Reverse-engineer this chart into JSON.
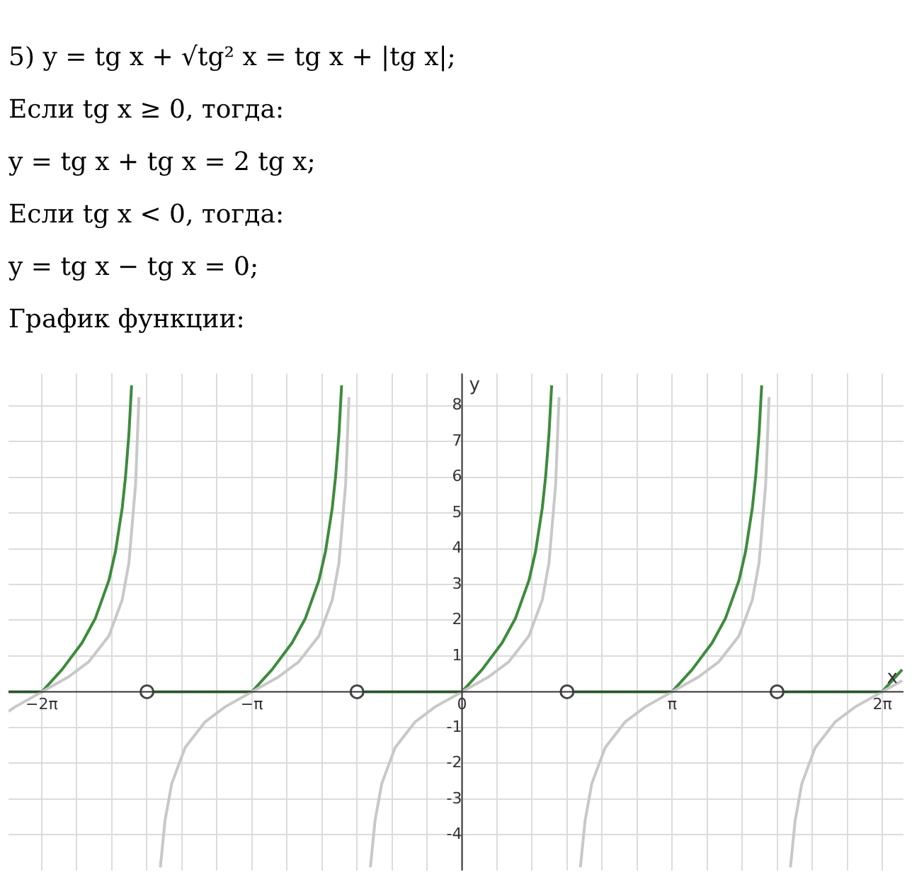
{
  "chart_data": {
    "type": "line",
    "annotations": [
      "5) y = tg x + √tg² x = tg x + |tg x|;",
      "Если tg x ≥ 0, тогда:",
      "y = tg x + tg x = 2 tg x;",
      "Если tg x < 0, тогда:",
      "y = tg x − tg x = 0;",
      "График функции:"
    ],
    "xlabel": "x",
    "ylabel": "y",
    "xlim": [
      -6.78,
      6.6
    ],
    "ylim": [
      -5,
      8.9
    ],
    "xticks": [
      {
        "value": -6.2832,
        "label": "−2π"
      },
      {
        "value": -5.7596,
        "label": null
      },
      {
        "value": -5.236,
        "label": null
      },
      {
        "value": -4.7124,
        "label": null
      },
      {
        "value": -4.1888,
        "label": null
      },
      {
        "value": -3.6652,
        "label": null
      },
      {
        "value": -3.1416,
        "label": "−π"
      },
      {
        "value": -2.618,
        "label": null
      },
      {
        "value": -2.0944,
        "label": null
      },
      {
        "value": -1.5708,
        "label": null
      },
      {
        "value": -1.0472,
        "label": null
      },
      {
        "value": -0.5236,
        "label": null
      },
      {
        "value": 0,
        "label": "0"
      },
      {
        "value": 0.5236,
        "label": null
      },
      {
        "value": 1.0472,
        "label": null
      },
      {
        "value": 1.5708,
        "label": null
      },
      {
        "value": 2.0944,
        "label": null
      },
      {
        "value": 2.618,
        "label": null
      },
      {
        "value": 3.1416,
        "label": "π"
      },
      {
        "value": 3.6652,
        "label": null
      },
      {
        "value": 4.1888,
        "label": null
      },
      {
        "value": 4.7124,
        "label": null
      },
      {
        "value": 5.236,
        "label": null
      },
      {
        "value": 5.7596,
        "label": null
      },
      {
        "value": 6.2832,
        "label": "2π"
      }
    ],
    "yticks": [
      -4,
      -3,
      -2,
      -1,
      1,
      2,
      3,
      4,
      5,
      6,
      7,
      8
    ],
    "grid": true,
    "marker": "none",
    "line_style": "solid",
    "series": [
      {
        "color": "#c8c8c8",
        "x": [
          -6.78,
          -6.68,
          -6.28,
          -5.88,
          -5.58,
          -5.28,
          -5.08,
          -4.98,
          -4.88,
          -4.83,
          -4.71,
          -4.51,
          -4.44,
          -4.34,
          -4.14,
          -3.84,
          -3.54,
          -3.14,
          -2.74,
          -2.44,
          -2.14,
          -1.94,
          -1.84,
          -1.74,
          -1.69,
          -1.57,
          -1.37,
          -1.3,
          -1.2,
          -1.0,
          -0.7,
          -0.4,
          0,
          0.4,
          0.7,
          1.0,
          1.2,
          1.3,
          1.4,
          1.45,
          1.57,
          1.77,
          1.84,
          1.94,
          2.14,
          2.44,
          2.74,
          3.14,
          3.54,
          3.84,
          4.14,
          4.34,
          4.44,
          4.54,
          4.59,
          4.71,
          4.91,
          4.98,
          5.08,
          5.28,
          5.58,
          5.88,
          6.28,
          6.58
        ],
        "values": [
          -0.55,
          -0.42,
          0,
          0.42,
          0.84,
          1.56,
          2.57,
          3.6,
          5.8,
          8.24,
          null,
          -4.91,
          -3.6,
          -2.57,
          -1.56,
          -0.84,
          -0.42,
          0,
          0.42,
          0.84,
          1.56,
          2.57,
          3.6,
          5.8,
          8.24,
          null,
          -4.91,
          -3.6,
          -2.57,
          -1.56,
          -0.84,
          -0.42,
          0,
          0.42,
          0.84,
          1.56,
          2.57,
          3.6,
          5.8,
          8.24,
          null,
          -4.91,
          -3.6,
          -2.57,
          -1.56,
          -0.84,
          -0.42,
          0,
          0.42,
          0.84,
          1.56,
          2.57,
          3.6,
          5.8,
          8.24,
          null,
          -4.91,
          -3.6,
          -2.57,
          -1.56,
          -0.84,
          -0.42,
          0,
          0.31
        ]
      },
      {
        "color": "#3d8b3d",
        "x": [
          -6.78,
          -6.28,
          -5.98,
          -5.68,
          -5.48,
          -5.28,
          -5.18,
          -5.08,
          -5.03,
          -4.98,
          -4.94,
          -4.82,
          -4.71,
          -3.14,
          -2.84,
          -2.54,
          -2.34,
          -2.14,
          -2.04,
          -1.94,
          -1.89,
          -1.84,
          -1.8,
          -1.68,
          -1.57,
          0,
          0.3,
          0.6,
          0.8,
          1.0,
          1.1,
          1.2,
          1.25,
          1.3,
          1.34,
          1.46,
          1.57,
          3.14,
          3.44,
          3.74,
          3.94,
          4.14,
          4.24,
          4.34,
          4.39,
          4.44,
          4.48,
          4.6,
          4.71,
          6.28,
          6.58
        ],
        "values": [
          0,
          0,
          0.62,
          1.37,
          2.06,
          3.11,
          3.93,
          5.14,
          6.02,
          7.2,
          8.57,
          null,
          0,
          0,
          0.62,
          1.37,
          2.06,
          3.11,
          3.93,
          5.14,
          6.02,
          7.2,
          8.57,
          null,
          0,
          0,
          0.62,
          1.37,
          2.06,
          3.11,
          3.93,
          5.14,
          6.02,
          7.2,
          8.57,
          null,
          0,
          0,
          0.62,
          1.37,
          2.06,
          3.11,
          3.93,
          5.14,
          6.02,
          7.2,
          8.57,
          null,
          0,
          0,
          0.62
        ]
      },
      {
        "type": "scatter",
        "marker": "circle",
        "color": "#444444",
        "x": [
          -4.71,
          -1.57,
          1.57,
          4.71
        ],
        "values": [
          0,
          0,
          0,
          0
        ]
      }
    ]
  }
}
